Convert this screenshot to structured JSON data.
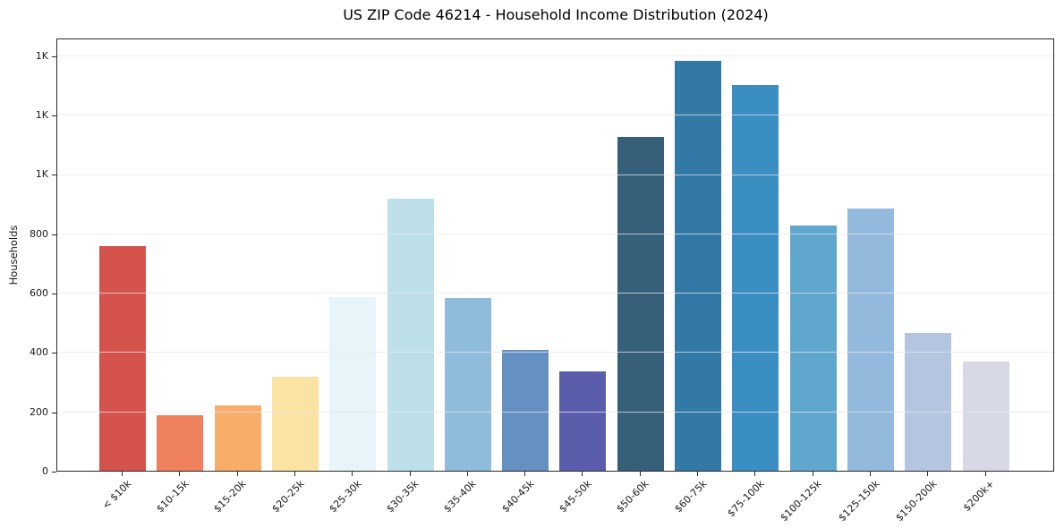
{
  "figure": {
    "title": "US ZIP Code 46214 - Household Income Distribution (2024)"
  },
  "chart_data": {
    "type": "bar",
    "title": "US ZIP Code 46214 - Household Income Distribution (2024)",
    "xlabel": "",
    "ylabel": "Households",
    "ylim": [
      0,
      1460
    ],
    "grid": "horizontal-light",
    "legend": "none",
    "y_ticks": [
      {
        "value": 0,
        "label": "0"
      },
      {
        "value": 200,
        "label": "200"
      },
      {
        "value": 400,
        "label": "400"
      },
      {
        "value": 600,
        "label": "600"
      },
      {
        "value": 800,
        "label": "800"
      },
      {
        "value": 1000,
        "label": "1K"
      },
      {
        "value": 1200,
        "label": "1K"
      },
      {
        "value": 1400,
        "label": "1K"
      }
    ],
    "categories": [
      "< $10k",
      "$10-15k",
      "$15-20k",
      "$20-25k",
      "$25-30k",
      "$30-35k",
      "$35-40k",
      "$40-45k",
      "$45-50k",
      "$50-60k",
      "$60-75k",
      "$75-100k",
      "$100-125k",
      "$125-150k",
      "$150-200k",
      "$200k+"
    ],
    "values": [
      756,
      186,
      219,
      318,
      585,
      918,
      581,
      408,
      334,
      1126,
      1382,
      1300,
      828,
      885,
      465,
      367
    ],
    "bar_colors": [
      "#d5534d",
      "#f0815f",
      "#f8ad6b",
      "#fbe3a3",
      "#e7f4f9",
      "#bcdfea",
      "#90bcdc",
      "#6590c2",
      "#5a5dab",
      "#36607a",
      "#3379a6",
      "#3b8ec2",
      "#60a7cd",
      "#93badc",
      "#b4c5e0",
      "#d8d9e6"
    ]
  }
}
